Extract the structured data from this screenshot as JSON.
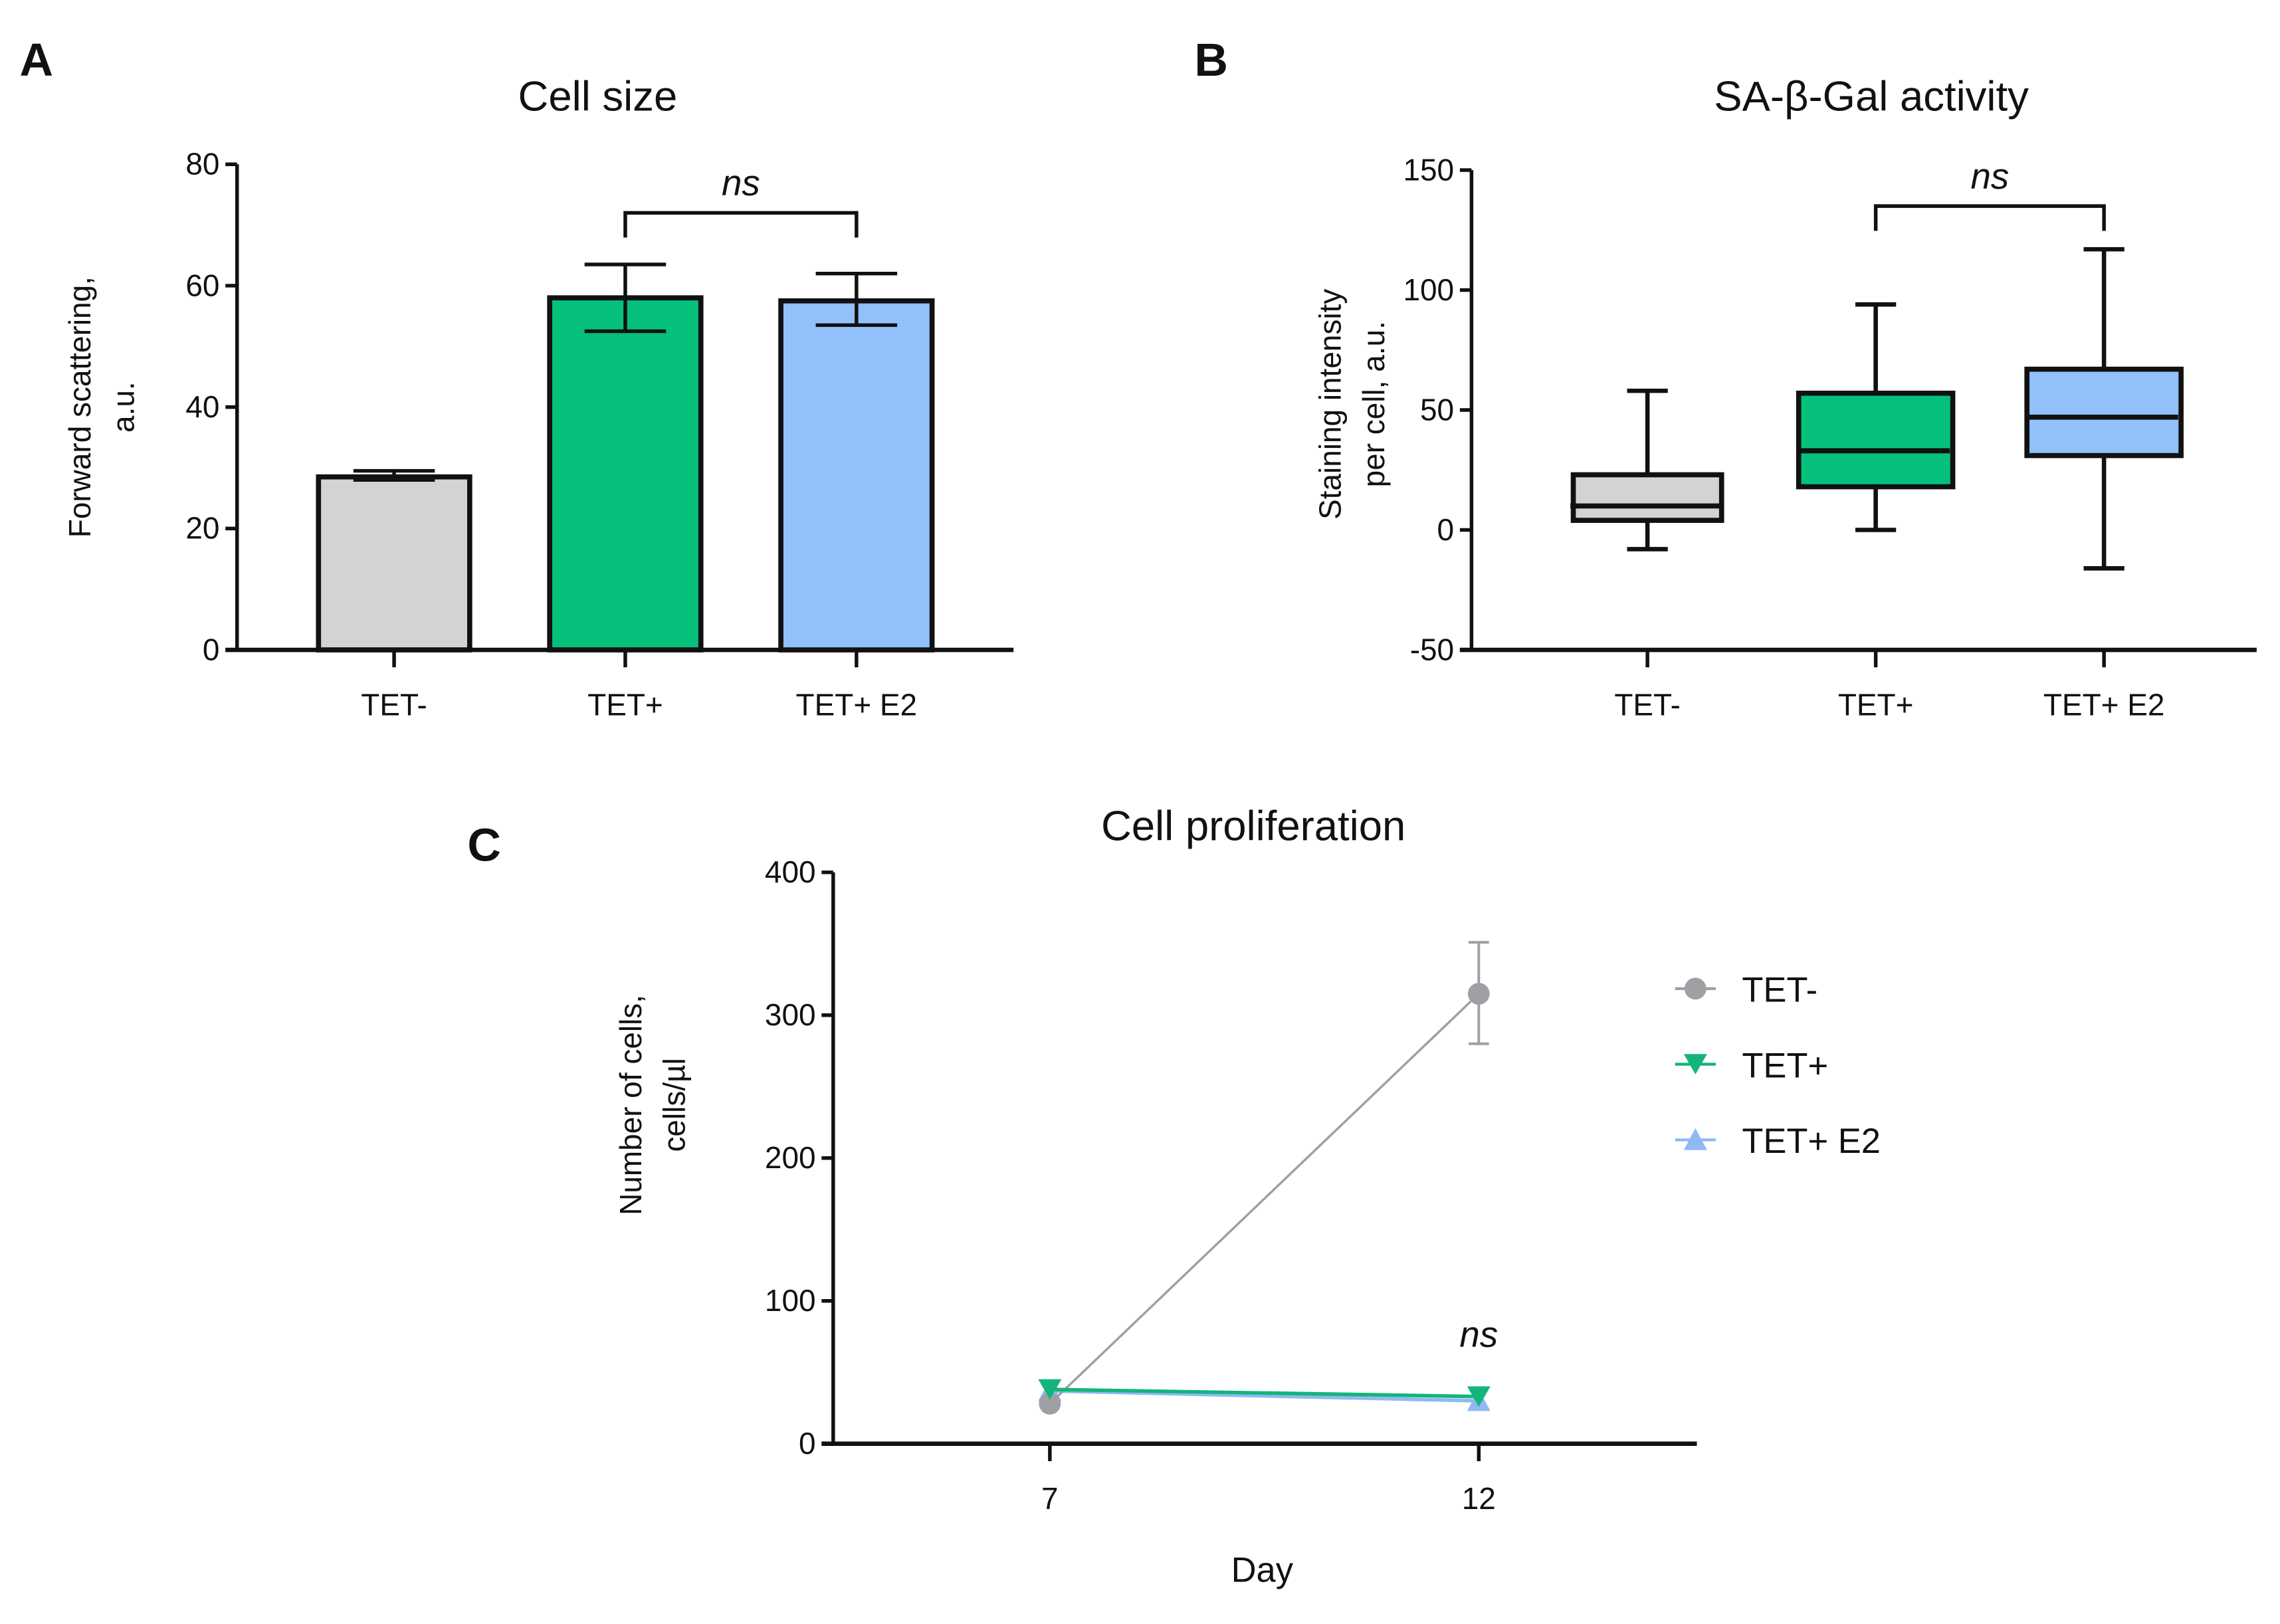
{
  "chart_data": [
    {
      "panel": "A",
      "type": "bar",
      "title": "Cell size",
      "ylabel_lines": [
        "Forward scattering,",
        "a.u."
      ],
      "xlabel": "",
      "ylim": [
        0,
        80
      ],
      "yticks": [
        0,
        20,
        40,
        60,
        80
      ],
      "categories": [
        "TET-",
        "TET+",
        "TET+ E2"
      ],
      "values": [
        28.5,
        58,
        57.5
      ],
      "error_low": [
        28,
        52.5,
        53.5
      ],
      "error_high": [
        29.5,
        63.5,
        62
      ],
      "colors": [
        "#d3d3d3",
        "#05c07a",
        "#91c0fa"
      ],
      "annotation": {
        "text": "ns",
        "between": [
          "TET+",
          "TET+ E2"
        ],
        "level": 72
      }
    },
    {
      "panel": "B",
      "type": "box",
      "title": "SA-β-Gal activity",
      "ylabel_lines": [
        "Staining intensity",
        "per cell, a.u."
      ],
      "ylim": [
        -50,
        150
      ],
      "yticks": [
        -50,
        0,
        50,
        100,
        150
      ],
      "categories": [
        "TET-",
        "TET+",
        "TET+ E2"
      ],
      "min": [
        -8,
        0,
        -16
      ],
      "q1": [
        4,
        18,
        31
      ],
      "median": [
        10,
        33,
        47
      ],
      "q3": [
        23,
        57,
        67
      ],
      "max": [
        58,
        94,
        117
      ],
      "colors": [
        "#d3d3d3",
        "#05c07a",
        "#91c0fa"
      ],
      "annotation": {
        "text": "ns",
        "between": [
          "TET+",
          "TET+ E2"
        ],
        "level": 135
      }
    },
    {
      "panel": "C",
      "type": "line",
      "title": "Cell proliferation",
      "xlabel": "Day",
      "ylabel_lines": [
        "Number of cells,",
        "cells/µl"
      ],
      "ylim": [
        0,
        400
      ],
      "yticks": [
        0,
        100,
        200,
        300,
        400
      ],
      "x": [
        7,
        12
      ],
      "series": [
        {
          "name": "TET-",
          "values": [
            28,
            315
          ],
          "err_low": [
            28,
            280
          ],
          "err_high": [
            28,
            351
          ],
          "color": "#a0a0a4",
          "marker": "circle"
        },
        {
          "name": "TET+",
          "values": [
            38,
            33
          ],
          "color": "#14b57a",
          "marker": "triangle-down"
        },
        {
          "name": "TET+ E2",
          "values": [
            37,
            30
          ],
          "color": "#8fb9f2",
          "marker": "triangle-up"
        }
      ],
      "annotation": {
        "text": "ns",
        "x": 12,
        "level": 78
      },
      "legend": "right"
    }
  ]
}
